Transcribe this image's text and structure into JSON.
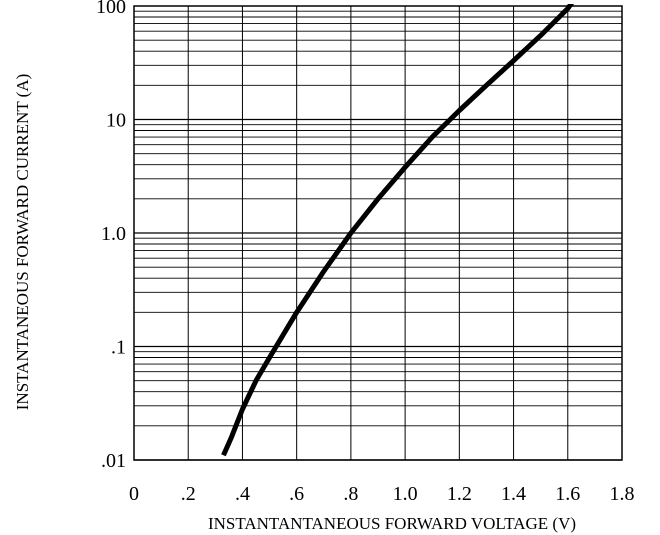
{
  "chart_data": {
    "type": "line",
    "title": "",
    "xlabel": "INSTANTANTANEOUS FORWARD VOLTAGE (V)",
    "ylabel": "INSTANTANEOUS FORWARD CURRENT (A)",
    "xlim": [
      0,
      1.8
    ],
    "ylim": [
      0.01,
      100
    ],
    "y_scale": "log",
    "grid": true,
    "legend": "none",
    "x_ticks": [
      "0",
      ".2",
      ".4",
      ".6",
      ".8",
      "1.0",
      "1.2",
      "1.4",
      "1.6",
      "1.8"
    ],
    "y_ticks": [
      ".01",
      ".1",
      "1.0",
      "10",
      "100"
    ],
    "series": [
      {
        "x": [
          0.33,
          0.36,
          0.4,
          0.45,
          0.5,
          0.6,
          0.7,
          0.8,
          0.9,
          1.0,
          1.1,
          1.2,
          1.3,
          1.4,
          1.5,
          1.6,
          1.63
        ],
        "y": [
          0.011,
          0.016,
          0.028,
          0.05,
          0.08,
          0.2,
          0.46,
          1.0,
          2.0,
          3.8,
          7.0,
          12.0,
          20.0,
          33.0,
          55.0,
          95.0,
          120.0
        ],
        "color": "#000000"
      }
    ]
  }
}
